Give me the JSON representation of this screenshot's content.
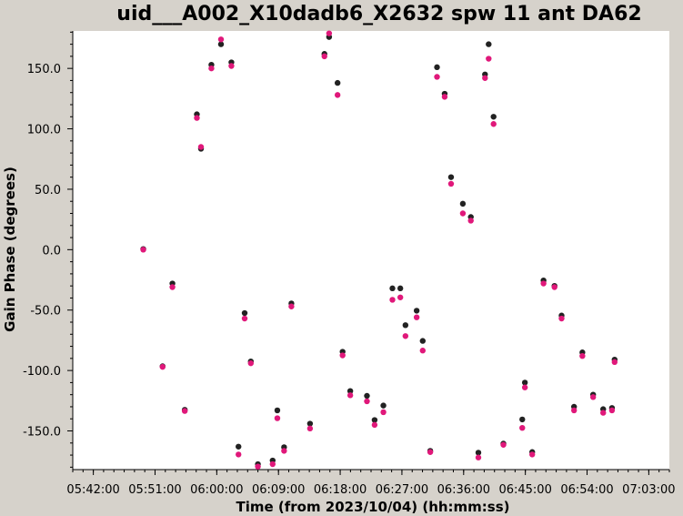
{
  "chart_data": {
    "type": "scatter",
    "title": "uid___A002_X10dadb6_X2632 spw 11 ant DA62",
    "xlabel": "Time (from 2023/10/04) (hh:mm:ss)",
    "ylabel": "Gain Phase (degrees)",
    "xlim": [
      "05:39:00",
      "07:06:00"
    ],
    "ylim": [
      -182,
      181
    ],
    "x_ticks": [
      "05:42:00",
      "05:51:00",
      "06:00:00",
      "06:09:00",
      "06:18:00",
      "06:27:00",
      "06:36:00",
      "06:45:00",
      "06:54:00",
      "07:03:00"
    ],
    "y_ticks": [
      150,
      100,
      50,
      0,
      -50,
      -100,
      -150
    ],
    "y_tick_labels": [
      "150.0",
      "100.0",
      "50.0",
      "0.0",
      "-50.0",
      "-100.0",
      "-150.0"
    ],
    "grid": false,
    "series": [
      {
        "color": "#222222",
        "x": [
          "05:49:17",
          "05:52:06",
          "05:53:32",
          "05:55:20",
          "05:57:06",
          "05:57:42",
          "05:59:13",
          "06:00:37",
          "06:02:08",
          "06:03:10",
          "06:04:04",
          "06:04:58",
          "06:06:00",
          "06:08:09",
          "06:08:50",
          "06:09:49",
          "06:10:53",
          "06:13:36",
          "06:15:42",
          "06:16:23",
          "06:17:37",
          "06:18:21",
          "06:19:28",
          "06:21:54",
          "06:23:01",
          "06:24:18",
          "06:25:37",
          "06:26:46",
          "06:27:31",
          "06:29:09",
          "06:30:02",
          "06:31:08",
          "06:32:07",
          "06:33:14",
          "06:34:10",
          "06:35:53",
          "06:37:03",
          "06:38:09",
          "06:39:07",
          "06:39:39",
          "06:40:22",
          "06:41:48",
          "06:44:33",
          "06:44:56",
          "06:46:00",
          "06:47:39",
          "06:49:15",
          "06:50:17",
          "06:52:06",
          "06:53:19",
          "06:54:53",
          "06:56:21",
          "06:57:38",
          "06:58:01"
        ],
        "values": [
          0.5,
          -96.5,
          -28,
          -132.5,
          112,
          83.5,
          153,
          170,
          155,
          -163,
          -52.5,
          -92.5,
          -177.5,
          -174.5,
          -133,
          -163.5,
          -44.5,
          -144,
          162,
          176,
          138,
          -84.5,
          -117,
          -121,
          -141,
          -129,
          -32,
          -32,
          -62.5,
          -50.5,
          -75.5,
          -166.5,
          151,
          129,
          60,
          38,
          27,
          -168,
          145,
          170,
          110,
          -160.5,
          -140.5,
          -110,
          -167.5,
          -25.5,
          -30,
          -54.5,
          -130,
          -85,
          -120,
          -132,
          -131,
          -91
        ]
      },
      {
        "color": "#e0187a",
        "x": [
          "05:49:17",
          "05:52:06",
          "05:53:32",
          "05:55:20",
          "05:57:06",
          "05:57:42",
          "05:59:13",
          "06:00:37",
          "06:02:08",
          "06:03:10",
          "06:04:04",
          "06:04:58",
          "06:06:00",
          "06:08:09",
          "06:08:50",
          "06:09:49",
          "06:10:53",
          "06:13:36",
          "06:15:42",
          "06:16:23",
          "06:17:37",
          "06:18:21",
          "06:19:28",
          "06:21:54",
          "06:23:01",
          "06:24:18",
          "06:25:37",
          "06:26:46",
          "06:27:31",
          "06:29:09",
          "06:30:02",
          "06:31:08",
          "06:32:07",
          "06:33:14",
          "06:34:10",
          "06:35:53",
          "06:37:03",
          "06:38:09",
          "06:39:07",
          "06:39:39",
          "06:40:22",
          "06:41:48",
          "06:44:33",
          "06:44:56",
          "06:46:00",
          "06:47:39",
          "06:49:15",
          "06:50:17",
          "06:52:06",
          "06:53:19",
          "06:54:53",
          "06:56:21",
          "06:57:38",
          "06:58:01"
        ],
        "values": [
          0,
          -97,
          -31,
          -133.5,
          109,
          85,
          150,
          174,
          152,
          -169.5,
          -57,
          -94,
          -179.5,
          -177.5,
          -139.5,
          -166.5,
          -47,
          -148,
          160,
          179,
          128,
          -87.5,
          -120.5,
          -125.5,
          -145,
          -134.5,
          -41.5,
          -39.5,
          -71.5,
          -56,
          -83.5,
          -167.5,
          143,
          126.5,
          54.5,
          30,
          24,
          -172,
          142,
          158,
          104,
          -161.5,
          -147.5,
          -114,
          -169.5,
          -28,
          -31,
          -57,
          -133,
          -88,
          -122,
          -135,
          -133,
          -93
        ]
      }
    ]
  }
}
